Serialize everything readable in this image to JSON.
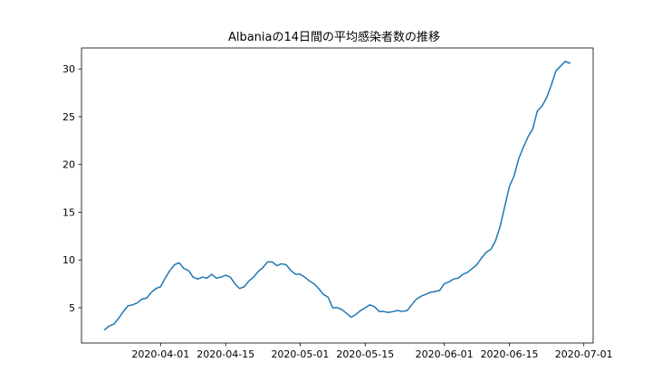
{
  "chart_data": {
    "type": "line",
    "title": "Albaniaの14日間の平均感染者数の推移",
    "xlabel": "",
    "ylabel": "",
    "x_start": "2020-03-20",
    "x_step_days": 1,
    "xlim": [
      "2020-03-15",
      "2020-07-03"
    ],
    "ylim": [
      1.3,
      32.2
    ],
    "grid": false,
    "line_color": "#1f77b4",
    "x_ticks": [
      "2020-04-01",
      "2020-04-15",
      "2020-05-01",
      "2020-05-15",
      "2020-06-01",
      "2020-06-15",
      "2020-07-01"
    ],
    "y_ticks": [
      5,
      10,
      15,
      20,
      25,
      30
    ],
    "series": [
      {
        "values": [
          2.7,
          3.1,
          3.3,
          3.9,
          4.6,
          5.2,
          5.3,
          5.5,
          5.9,
          6.0,
          6.6,
          7.0,
          7.2,
          8.1,
          8.9,
          9.5,
          9.7,
          9.1,
          8.9,
          8.2,
          8.0,
          8.2,
          8.1,
          8.5,
          8.1,
          8.2,
          8.4,
          8.2,
          7.5,
          7.0,
          7.2,
          7.8,
          8.2,
          8.8,
          9.2,
          9.8,
          9.8,
          9.4,
          9.6,
          9.5,
          8.9,
          8.5,
          8.5,
          8.2,
          7.8,
          7.5,
          7.0,
          6.4,
          6.1,
          5.0,
          5.0,
          4.8,
          4.4,
          4.0,
          4.3,
          4.7,
          5.0,
          5.3,
          5.1,
          4.6,
          4.6,
          4.5,
          4.6,
          4.7,
          4.6,
          4.7,
          5.3,
          5.9,
          6.2,
          6.4,
          6.6,
          6.7,
          6.8,
          7.5,
          7.7,
          8.0,
          8.1,
          8.5,
          8.7,
          9.1,
          9.5,
          10.2,
          10.8,
          11.1,
          12.0,
          13.5,
          15.6,
          17.7,
          18.8,
          20.6,
          21.8,
          22.9,
          23.7,
          25.6,
          26.1,
          27.0,
          28.3,
          29.8,
          30.3,
          30.8,
          30.6
        ]
      }
    ]
  }
}
